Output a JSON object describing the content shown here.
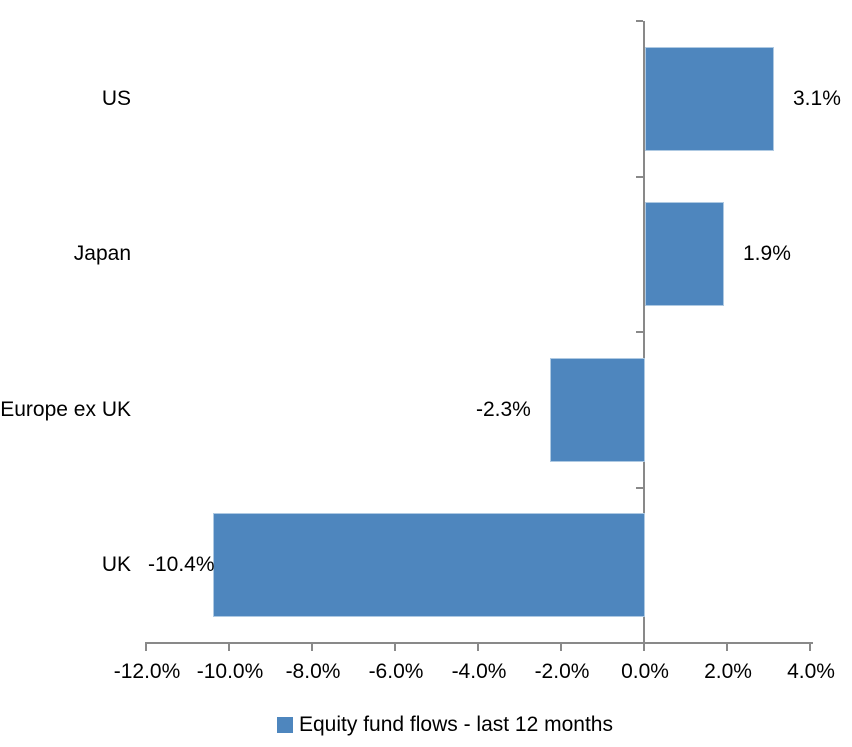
{
  "chart_data": {
    "type": "bar",
    "orientation": "horizontal",
    "title": "",
    "categories": [
      "US",
      "Japan",
      "Europe ex UK",
      "UK"
    ],
    "series": [
      {
        "name": "Equity fund flows - last 12 months",
        "values": [
          3.1,
          1.9,
          -2.3,
          -10.4
        ],
        "data_labels": [
          "3.1%",
          "1.9%",
          "-2.3%",
          "-10.4%"
        ]
      }
    ],
    "xlim": [
      -12,
      4
    ],
    "x_ticks": [
      -12,
      -10,
      -8,
      -6,
      -4,
      -2,
      0,
      2,
      4
    ],
    "x_tick_labels": [
      "-12.0%",
      "-10.0%",
      "-8.0%",
      "-6.0%",
      "-4.0%",
      "-2.0%",
      "0.0%",
      "2.0%",
      "4.0%"
    ],
    "grid": false,
    "legend_position": "bottom",
    "legend_label": "Equity fund flows - last 12 months",
    "colors": {
      "bar_fill": "#4E86BE",
      "bar_border": "#AEC9E2",
      "axis": "#898989",
      "text": "#000000",
      "background": "#FFFFFF"
    }
  }
}
